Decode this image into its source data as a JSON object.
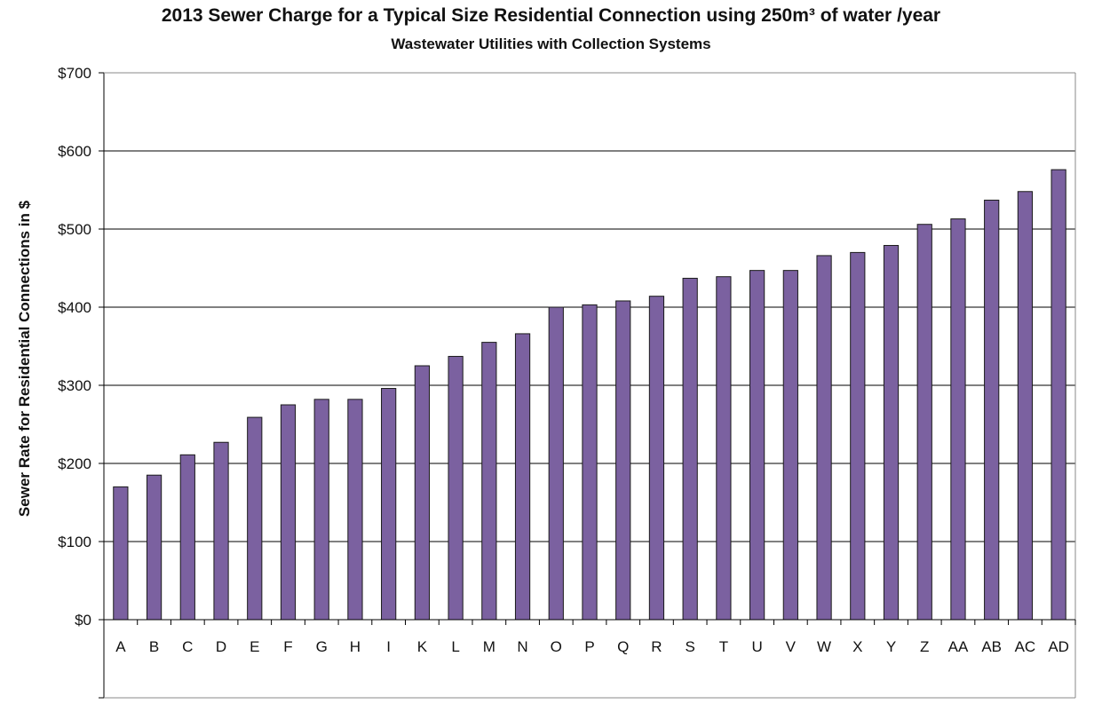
{
  "chart_data": {
    "type": "bar",
    "title": "2013 Sewer Charge for a Typical Size Residential Connection using 250m³ of water /year",
    "subtitle": "Wastewater Utilities with Collection Systems",
    "ylabel": "Sewer Rate for Residential Connections in $",
    "xlabel": "",
    "ylim": [
      0,
      700
    ],
    "yticks": [
      0,
      100,
      200,
      300,
      400,
      500,
      600,
      700
    ],
    "ytick_labels": [
      "$0",
      "$100",
      "$200",
      "$300",
      "$400",
      "$500",
      "$600",
      "$700"
    ],
    "grid": true,
    "legend": "none",
    "bar_color": "#7b61a0",
    "categories": [
      "A",
      "B",
      "C",
      "D",
      "E",
      "F",
      "G",
      "H",
      "I",
      "K",
      "L",
      "M",
      "N",
      "O",
      "P",
      "Q",
      "R",
      "S",
      "T",
      "U",
      "V",
      "W",
      "X",
      "Y",
      "Z",
      "AA",
      "AB",
      "AC",
      "AD"
    ],
    "values": [
      170,
      185,
      211,
      227,
      259,
      275,
      282,
      282,
      296,
      325,
      337,
      355,
      366,
      400,
      403,
      408,
      414,
      437,
      439,
      447,
      447,
      466,
      470,
      479,
      506,
      513,
      537,
      548,
      576
    ]
  }
}
